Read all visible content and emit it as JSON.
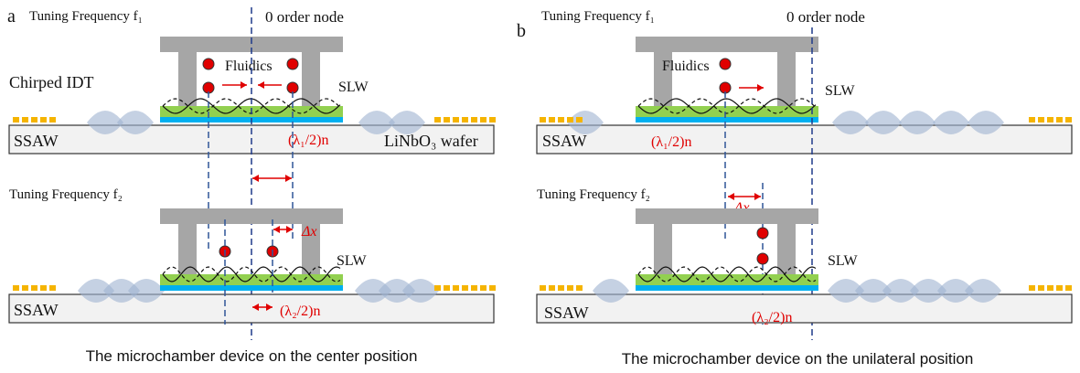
{
  "panels": [
    {
      "label": "a",
      "top": {
        "frequency": "Tuning Frequency f₁",
        "node": "0 order node",
        "fluidics": "Fluidics",
        "idt": "Chirped IDT",
        "slw": "SLW",
        "ssaw": "SSAW",
        "lambda": "(λ₁/2)n",
        "wafer": "LiNbO₃ wafer"
      },
      "bottom": {
        "frequency": "Tuning Frequency f₂",
        "delta": "Δx",
        "slw": "SLW",
        "ssaw": "SSAW",
        "lambda": "(λ₂/2)n"
      },
      "caption": "The microchamber device on the center position"
    },
    {
      "label": "b",
      "top": {
        "frequency": "Tuning Frequency f₁",
        "node": "0 order node",
        "fluidics": "Fluidics",
        "slw": "SLW",
        "ssaw": "SSAW",
        "lambda": "(λ₁/2)n"
      },
      "bottom": {
        "frequency": "Tuning Frequency f₂",
        "delta": "Δx",
        "slw": "SLW",
        "ssaw": "SSAW",
        "lambda": "(λ₂/2)n"
      },
      "caption": "The microchamber device on the unilateral position"
    }
  ]
}
